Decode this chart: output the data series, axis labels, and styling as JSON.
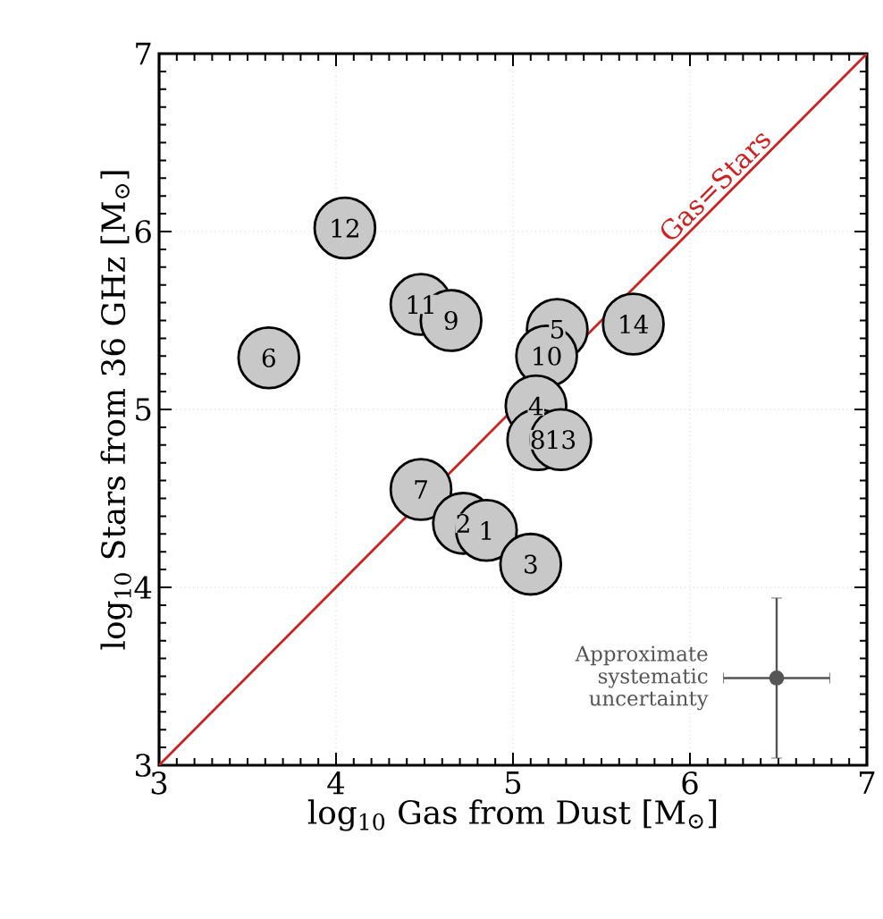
{
  "chart_data": {
    "type": "scatter",
    "xlabel": "log$_{10}$ Gas from Dust [M$_{⊙}$]",
    "ylabel": "log$_{10}$ Stars from 36 GHz [M$_{⊙}$]",
    "xlim": [
      3,
      7
    ],
    "ylim": [
      3,
      7
    ],
    "xticks": [
      3,
      4,
      5,
      6,
      7
    ],
    "yticks": [
      3,
      4,
      5,
      6,
      7
    ],
    "grid": true,
    "series": [
      {
        "type": "line",
        "name": "Gas=Stars",
        "color": "#cc2222",
        "line_style": "solid",
        "marker": "none",
        "x": [
          3,
          7
        ],
        "values": [
          3,
          7
        ]
      },
      {
        "color": "#c8c8c8",
        "marker": "circle",
        "x": [
          4.05,
          4.48,
          4.65,
          3.62,
          5.25,
          5.68,
          5.19,
          5.13,
          5.14,
          5.27,
          4.48,
          4.72,
          4.85,
          5.1
        ],
        "values": [
          6.02,
          5.59,
          5.5,
          5.29,
          5.45,
          5.48,
          5.3,
          5.02,
          4.83,
          4.83,
          4.55,
          4.36,
          4.32,
          4.13
        ]
      },
      {
        "name": "Approximate systematic uncertainty",
        "color": "#555555",
        "marker": "circle",
        "x": [
          6.49
        ],
        "values": [
          3.49
        ],
        "errors": [
          0.45
        ],
        "xerrors": [
          0.3
        ]
      }
    ],
    "annotations": [
      {
        "text": "12",
        "x": 4.05,
        "y": 6.02
      },
      {
        "text": "11",
        "x": 4.48,
        "y": 5.59
      },
      {
        "text": "9",
        "x": 4.65,
        "y": 5.5
      },
      {
        "text": "6",
        "x": 3.62,
        "y": 5.29
      },
      {
        "text": "5",
        "x": 5.25,
        "y": 5.45
      },
      {
        "text": "14",
        "x": 5.68,
        "y": 5.48
      },
      {
        "text": "10",
        "x": 5.19,
        "y": 5.3
      },
      {
        "text": "4",
        "x": 5.13,
        "y": 5.02
      },
      {
        "text": "8",
        "x": 5.14,
        "y": 4.83
      },
      {
        "text": "13",
        "x": 5.27,
        "y": 4.83
      },
      {
        "text": "7",
        "x": 4.48,
        "y": 4.55
      },
      {
        "text": "2",
        "x": 4.72,
        "y": 4.36
      },
      {
        "text": "1",
        "x": 4.85,
        "y": 4.32
      },
      {
        "text": "3",
        "x": 5.1,
        "y": 4.13
      }
    ]
  }
}
